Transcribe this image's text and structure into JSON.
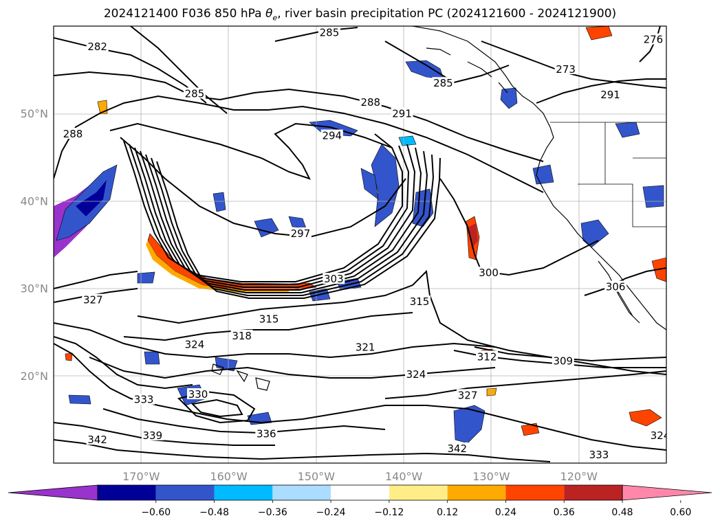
{
  "title": {
    "prefix": "2024121400 F036 850 hPa ",
    "theta": "θ",
    "theta_sub": "e",
    "suffix": ", river basin precipitation PC (2024121600 - 2024121900)"
  },
  "map": {
    "lon_range": [
      -180,
      -110
    ],
    "lat_range": [
      10,
      60
    ],
    "lat_ticks": [
      {
        "value": 50,
        "label": "50°N"
      },
      {
        "value": 40,
        "label": "40°N"
      },
      {
        "value": 30,
        "label": "30°N"
      },
      {
        "value": 20,
        "label": "20°N"
      }
    ],
    "lon_ticks": [
      {
        "value": -170,
        "label": "170°W"
      },
      {
        "value": -160,
        "label": "160°W"
      },
      {
        "value": -150,
        "label": "150°W"
      },
      {
        "value": -140,
        "label": "140°W"
      },
      {
        "value": -130,
        "label": "130°W"
      },
      {
        "value": -120,
        "label": "120°W"
      }
    ],
    "grid": true,
    "contour_labels": [
      {
        "text": "282",
        "lon": -175,
        "lat": 57.5
      },
      {
        "text": "285",
        "lon": -148.5,
        "lat": 59.1
      },
      {
        "text": "285",
        "lon": -135.5,
        "lat": 53.3
      },
      {
        "text": "285",
        "lon": -163.9,
        "lat": 52.1
      },
      {
        "text": "288",
        "lon": -177.8,
        "lat": 47.5
      },
      {
        "text": "288",
        "lon": -143.8,
        "lat": 51.1
      },
      {
        "text": "291",
        "lon": -140.2,
        "lat": 49.8
      },
      {
        "text": "294",
        "lon": -148.2,
        "lat": 47.3
      },
      {
        "text": "297",
        "lon": -151.8,
        "lat": 36.1
      },
      {
        "text": "300",
        "lon": -130.3,
        "lat": 31.6
      },
      {
        "text": "303",
        "lon": -148.0,
        "lat": 30.9
      },
      {
        "text": "315",
        "lon": -155.4,
        "lat": 26.3
      },
      {
        "text": "315",
        "lon": -138.2,
        "lat": 28.3
      },
      {
        "text": "318",
        "lon": -158.5,
        "lat": 24.4
      },
      {
        "text": "321",
        "lon": -144.4,
        "lat": 23.1
      },
      {
        "text": "324",
        "lon": -163.9,
        "lat": 23.4
      },
      {
        "text": "324",
        "lon": -138.6,
        "lat": 20.0
      },
      {
        "text": "327",
        "lon": -175.5,
        "lat": 28.5
      },
      {
        "text": "327",
        "lon": -132.7,
        "lat": 17.6
      },
      {
        "text": "330",
        "lon": -163.5,
        "lat": 17.7
      },
      {
        "text": "333",
        "lon": -169.7,
        "lat": 17.1
      },
      {
        "text": "336",
        "lon": -155.7,
        "lat": 13.2
      },
      {
        "text": "339",
        "lon": -168.7,
        "lat": 13.0
      },
      {
        "text": "342",
        "lon": -175.0,
        "lat": 12.5
      },
      {
        "text": "342",
        "lon": -133.9,
        "lat": 11.5
      },
      {
        "text": "333",
        "lon": -117.7,
        "lat": 10.8
      },
      {
        "text": "312",
        "lon": -130.5,
        "lat": 22.0
      },
      {
        "text": "309",
        "lon": -121.8,
        "lat": 21.5
      },
      {
        "text": "306",
        "lon": -115.8,
        "lat": 30.0
      },
      {
        "text": "291",
        "lon": -116.4,
        "lat": 52.0
      },
      {
        "text": "273",
        "lon": -121.5,
        "lat": 54.9
      },
      {
        "text": "276",
        "lon": -111.5,
        "lat": 58.3
      },
      {
        "text": "324",
        "lon": -110.7,
        "lat": 13.0
      }
    ]
  },
  "colorbar": {
    "colors": [
      "#9933cc",
      "#000099",
      "#3355cc",
      "#00bbff",
      "#aaddff",
      "#ffffff",
      "#ffee88",
      "#ffaa00",
      "#ff4400",
      "#bb2222",
      "#ff88aa"
    ],
    "ticks": [
      "−0.60",
      "−0.48",
      "−0.36",
      "−0.24",
      "−0.12",
      "0.12",
      "0.24",
      "0.36",
      "0.48",
      "0.60"
    ]
  }
}
